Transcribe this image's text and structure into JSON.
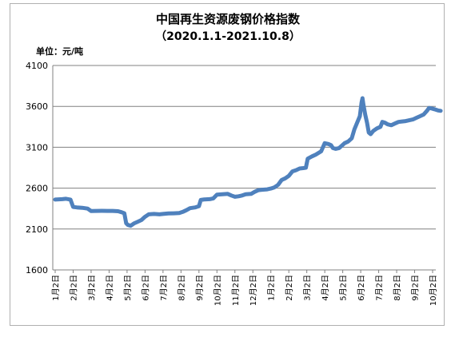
{
  "chart_data": {
    "type": "line",
    "title": "中国再生资源废钢价格指数",
    "subtitle": "（2020.1.1-2021.10.8）",
    "unit_label": "单位：元/吨",
    "ylim": [
      1600,
      4100
    ],
    "yticks": [
      "1600",
      "2100",
      "2600",
      "3100",
      "3600",
      "4100"
    ],
    "grid": "horizontal",
    "legend": "none",
    "color": "#4f81bd",
    "categories": [
      "1月2日",
      "2月2日",
      "3月2日",
      "4月2日",
      "5月2日",
      "6月2日",
      "7月2日",
      "8月2日",
      "9月2日",
      "10月2日",
      "11月2日",
      "12月2日",
      "1月2日",
      "2月2日",
      "3月2日",
      "4月2日",
      "5月2日",
      "6月2日",
      "7月2日",
      "8月2日",
      "9月2日",
      "10月2日"
    ],
    "series": [
      {
        "values": [
          [
            0,
            2460
          ],
          [
            0.4,
            2465
          ],
          [
            0.6,
            2470
          ],
          [
            0.85,
            2460
          ],
          [
            1.0,
            2370
          ],
          [
            1.2,
            2365
          ],
          [
            1.5,
            2360
          ],
          [
            1.8,
            2350
          ],
          [
            2.0,
            2320
          ],
          [
            2.3,
            2322
          ],
          [
            2.6,
            2323
          ],
          [
            2.9,
            2322
          ],
          [
            3.2,
            2322
          ],
          [
            3.5,
            2318
          ],
          [
            3.7,
            2305
          ],
          [
            3.85,
            2292
          ],
          [
            3.95,
            2170
          ],
          [
            4.05,
            2150
          ],
          [
            4.2,
            2140
          ],
          [
            4.4,
            2170
          ],
          [
            4.6,
            2190
          ],
          [
            4.8,
            2210
          ],
          [
            5.0,
            2250
          ],
          [
            5.2,
            2280
          ],
          [
            5.5,
            2285
          ],
          [
            5.8,
            2280
          ],
          [
            6.0,
            2285
          ],
          [
            6.3,
            2290
          ],
          [
            6.6,
            2292
          ],
          [
            6.9,
            2295
          ],
          [
            7.1,
            2310
          ],
          [
            7.3,
            2330
          ],
          [
            7.5,
            2355
          ],
          [
            7.8,
            2365
          ],
          [
            8.0,
            2380
          ],
          [
            8.1,
            2455
          ],
          [
            8.3,
            2462
          ],
          [
            8.6,
            2465
          ],
          [
            8.8,
            2475
          ],
          [
            9.0,
            2520
          ],
          [
            9.3,
            2525
          ],
          [
            9.6,
            2530
          ],
          [
            9.8,
            2510
          ],
          [
            10.0,
            2495
          ],
          [
            10.2,
            2500
          ],
          [
            10.4,
            2510
          ],
          [
            10.6,
            2525
          ],
          [
            10.9,
            2530
          ],
          [
            11.1,
            2555
          ],
          [
            11.3,
            2575
          ],
          [
            11.5,
            2580
          ],
          [
            11.8,
            2585
          ],
          [
            12.0,
            2595
          ],
          [
            12.2,
            2610
          ],
          [
            12.4,
            2640
          ],
          [
            12.6,
            2700
          ],
          [
            12.8,
            2720
          ],
          [
            13.0,
            2750
          ],
          [
            13.2,
            2805
          ],
          [
            13.4,
            2820
          ],
          [
            13.6,
            2840
          ],
          [
            13.8,
            2845
          ],
          [
            13.95,
            2850
          ],
          [
            14.05,
            2960
          ],
          [
            14.3,
            2990
          ],
          [
            14.5,
            3010
          ],
          [
            14.8,
            3050
          ],
          [
            15.0,
            3150
          ],
          [
            15.2,
            3140
          ],
          [
            15.35,
            3125
          ],
          [
            15.45,
            3090
          ],
          [
            15.6,
            3080
          ],
          [
            15.8,
            3090
          ],
          [
            15.95,
            3120
          ],
          [
            16.1,
            3150
          ],
          [
            16.3,
            3170
          ],
          [
            16.5,
            3210
          ],
          [
            16.65,
            3320
          ],
          [
            16.8,
            3400
          ],
          [
            16.95,
            3480
          ],
          [
            17.05,
            3650
          ],
          [
            17.1,
            3700
          ],
          [
            17.15,
            3620
          ],
          [
            17.25,
            3500
          ],
          [
            17.35,
            3400
          ],
          [
            17.45,
            3280
          ],
          [
            17.55,
            3260
          ],
          [
            17.7,
            3300
          ],
          [
            17.9,
            3330
          ],
          [
            18.1,
            3350
          ],
          [
            18.2,
            3410
          ],
          [
            18.35,
            3400
          ],
          [
            18.5,
            3380
          ],
          [
            18.7,
            3370
          ],
          [
            18.9,
            3390
          ],
          [
            19.1,
            3410
          ],
          [
            19.3,
            3415
          ],
          [
            19.5,
            3420
          ],
          [
            19.7,
            3430
          ],
          [
            19.9,
            3440
          ],
          [
            20.1,
            3460
          ],
          [
            20.3,
            3480
          ],
          [
            20.5,
            3500
          ],
          [
            20.7,
            3550
          ],
          [
            20.8,
            3580
          ],
          [
            20.95,
            3575
          ],
          [
            21.1,
            3565
          ],
          [
            21.3,
            3550
          ],
          [
            21.45,
            3545
          ]
        ]
      }
    ]
  }
}
